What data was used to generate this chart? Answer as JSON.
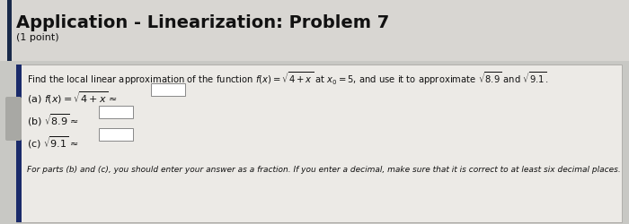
{
  "title": "Application - Linearization: Problem 7",
  "subtitle": "(1 point)",
  "bg_color": "#c8c8c4",
  "title_bg_color": "#d8d6d2",
  "box_color": "#eceae6",
  "title_color": "#111111",
  "text_color": "#111111",
  "problem_text": "Find the local linear approximation of the function $f(x) = \\sqrt{4+x}$ at $x_0 = 5$, and use it to approximate $\\sqrt{8.9}$ and $\\sqrt{9.1}$.",
  "part_a": "(a) $f(x) = \\sqrt{4+x} \\approx$",
  "part_b": "(b) $\\sqrt{8.9} \\approx$",
  "part_c": "(c) $\\sqrt{9.1} \\approx$",
  "footer": "For parts (b) and (c), you should enter your answer as a fraction. If you enter a decimal, make sure that it is correct to at least six decimal places.",
  "title_bar_color": "#1a2a4a",
  "sidebar_color": "#1a2a6a",
  "sidebar2_color": "#a0a0a0",
  "title_fontsize": 14,
  "subtitle_fontsize": 8,
  "problem_fontsize": 7.2,
  "part_fontsize": 8.0,
  "footer_fontsize": 6.5
}
